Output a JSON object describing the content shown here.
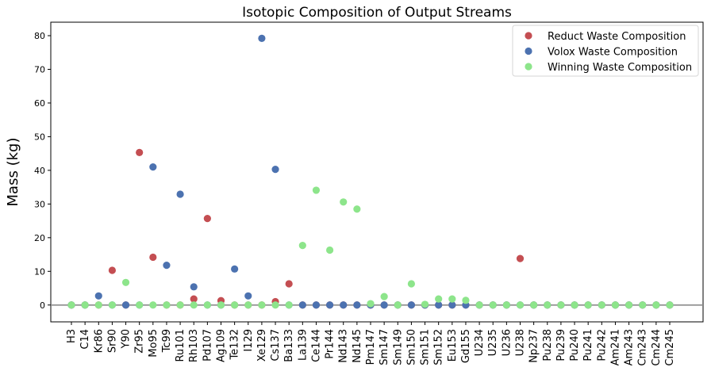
{
  "chart_data": {
    "type": "scatter",
    "title": "Isotopic Composition of Output Streams",
    "xlabel": "",
    "ylabel": "Mass (kg)",
    "ylim": [
      -5,
      84
    ],
    "yticks": [
      0,
      10,
      20,
      30,
      40,
      50,
      60,
      70,
      80
    ],
    "grid": false,
    "legend_position": "top-right",
    "reference_line": 0,
    "categories": [
      "H3",
      "C14",
      "Kr86",
      "Sr90",
      "Y90",
      "Zr95",
      "Mo95",
      "Tc99",
      "Ru101",
      "Rh103",
      "Pd107",
      "Ag109",
      "Te132",
      "I129",
      "Xe129",
      "Cs137",
      "Ba133",
      "La139",
      "Ce144",
      "Pr144",
      "Nd143",
      "Nd145",
      "Pm147",
      "Sm147",
      "Sm149",
      "Sm150",
      "Sm151",
      "Sm152",
      "Eu153",
      "Gd155",
      "U234",
      "U235",
      "U236",
      "U238",
      "Np237",
      "Pu238",
      "Pu239",
      "Pu240",
      "Pu241",
      "Pu242",
      "Am241",
      "Am243",
      "Cm243",
      "Cm244",
      "Cm245"
    ],
    "series": [
      {
        "name": "Reduct Waste Composition",
        "color": "#c44e52",
        "values": [
          0,
          0,
          0,
          10.3,
          0,
          45.3,
          14.2,
          0,
          0,
          1.8,
          25.7,
          1.3,
          0,
          0,
          0,
          1.0,
          6.3,
          0,
          0,
          0,
          0,
          0,
          0,
          0,
          0,
          0,
          0,
          0,
          0,
          0,
          0,
          0,
          0,
          13.8,
          0,
          0,
          0,
          0,
          0,
          0,
          0,
          0,
          0,
          0,
          0
        ]
      },
      {
        "name": "Volox Waste Composition",
        "color": "#4c72b0",
        "values": [
          0,
          0,
          2.7,
          0,
          0,
          0,
          41.0,
          11.8,
          32.9,
          5.4,
          0,
          0,
          10.7,
          2.7,
          79.2,
          40.3,
          0,
          0,
          0,
          0,
          0,
          0,
          0,
          0,
          0,
          0,
          0,
          0,
          0,
          0,
          0,
          0,
          0,
          0,
          0,
          0,
          0,
          0,
          0,
          0,
          0,
          0,
          0,
          0,
          0
        ]
      },
      {
        "name": "Winning Waste Composition",
        "color": "#8de58b",
        "values": [
          0,
          0,
          0,
          0,
          6.7,
          0,
          0,
          0,
          0,
          0,
          0,
          0,
          0,
          0,
          0,
          0,
          0,
          17.7,
          34.1,
          16.3,
          30.6,
          28.5,
          0.4,
          2.5,
          0,
          6.3,
          0.2,
          1.8,
          1.8,
          1.4,
          0,
          0,
          0,
          0,
          0,
          0,
          0,
          0,
          0,
          0,
          0,
          0,
          0,
          0,
          0
        ]
      }
    ]
  }
}
